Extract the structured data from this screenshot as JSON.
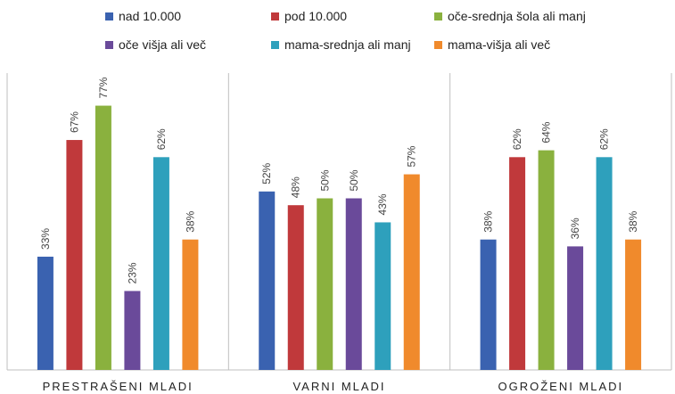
{
  "chart_data": {
    "type": "bar",
    "categories": [
      "PRESTRAŠENI MLADI",
      "VARNI MLADI",
      "OGROŽENI MLADI"
    ],
    "series": [
      {
        "name": "nad 10.000",
        "color": "#3a62b0",
        "values": [
          33,
          52,
          38
        ],
        "labels": [
          "33%",
          "52%",
          "38%"
        ]
      },
      {
        "name": "pod 10.000",
        "color": "#c0393b",
        "values": [
          67,
          48,
          62
        ],
        "labels": [
          "67%",
          "48%",
          "62%"
        ]
      },
      {
        "name": "oče-srednja šola ali manj",
        "color": "#8ab13e",
        "values": [
          77,
          50,
          64
        ],
        "labels": [
          "77%",
          "50%",
          "64%"
        ]
      },
      {
        "name": "oče višja ali več",
        "color": "#6a4a9a",
        "values": [
          23,
          50,
          36
        ],
        "labels": [
          "23%",
          "50%",
          "36%"
        ]
      },
      {
        "name": "mama-srednja ali manj",
        "color": "#2ea0bc",
        "values": [
          62,
          43,
          62
        ],
        "labels": [
          "62%",
          "43%",
          "62%"
        ]
      },
      {
        "name": "mama-višja ali več",
        "color": "#f08a2c",
        "values": [
          38,
          57,
          38
        ],
        "labels": [
          "38%",
          "57%",
          "38%"
        ]
      }
    ],
    "ylim": [
      0,
      100
    ],
    "grid": false,
    "legend": "top"
  }
}
